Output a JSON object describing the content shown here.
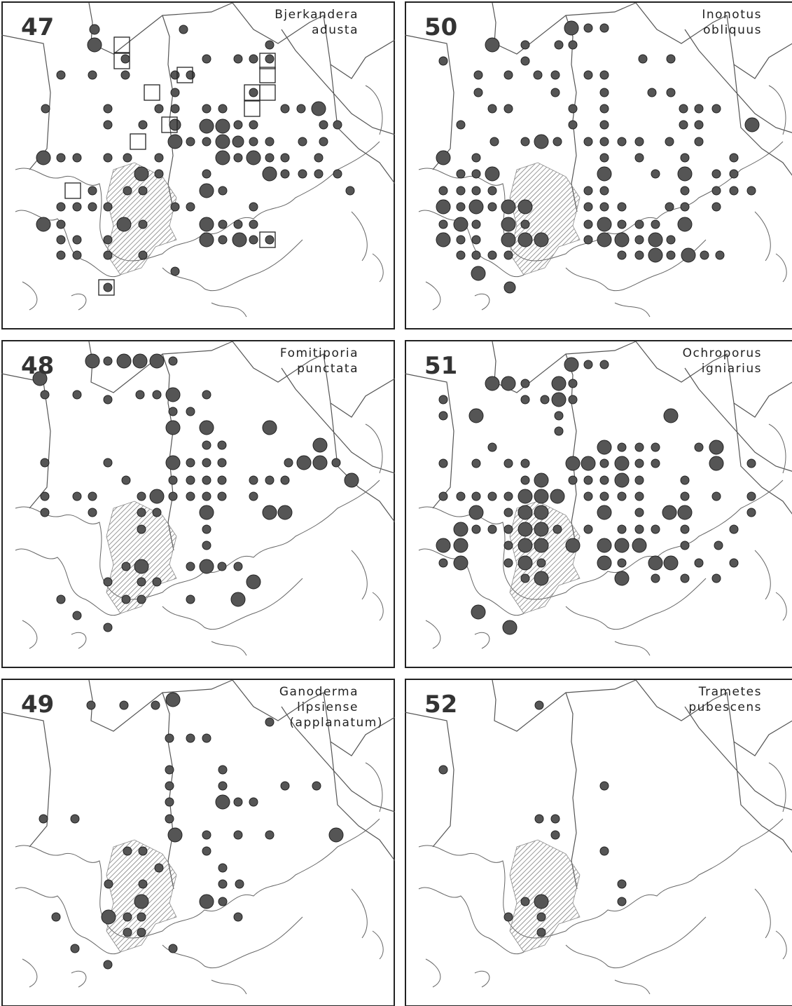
{
  "panels": [
    {
      "number": "47",
      "name": [
        "Bjerkandera",
        "adusta"
      ]
    },
    {
      "number": "50",
      "name": [
        "Inonotus",
        "obliquus"
      ]
    },
    {
      "number": "48",
      "name": [
        "Fomitiporia",
        "punctata"
      ]
    },
    {
      "number": "51",
      "name": [
        "Ochroporus",
        "igniarius"
      ]
    },
    {
      "number": "49",
      "name": [
        "Ganoderma",
        "lipsiense",
        "(applanatum)"
      ]
    },
    {
      "number": "52",
      "name": [
        "Trametes",
        "pubescens"
      ]
    }
  ]
}
